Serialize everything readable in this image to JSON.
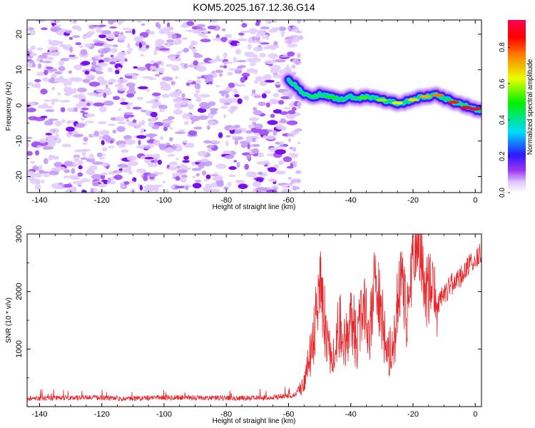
{
  "figure": {
    "title": "KOM5.2025.167.12.36.G14"
  },
  "chart_data": [
    {
      "type": "heatmap",
      "xlabel": "Height of straight line (km)",
      "ylabel": "Frequency (Hz)",
      "xlim": [
        -144,
        2
      ],
      "ylim": [
        -24.5,
        24
      ],
      "xticks": [
        -140,
        -120,
        -100,
        -80,
        -60,
        -40,
        -20,
        0
      ],
      "yticks": [
        20,
        10,
        0,
        -10,
        -20
      ],
      "grid": false,
      "noise_region": {
        "x_range": [
          -144,
          -57
        ],
        "y_range": [
          -24.5,
          24
        ],
        "typical_amplitude": 0.05
      },
      "signal_track": [
        {
          "x": -60,
          "y": 7.0
        },
        {
          "x": -57,
          "y": 5.0
        },
        {
          "x": -55,
          "y": 3.0
        },
        {
          "x": -52,
          "y": 2.5
        },
        {
          "x": -50,
          "y": 3.0
        },
        {
          "x": -47,
          "y": 2.5
        },
        {
          "x": -45,
          "y": 2.0
        },
        {
          "x": -42,
          "y": 1.5
        },
        {
          "x": -40,
          "y": 2.5
        },
        {
          "x": -37,
          "y": 2.0
        },
        {
          "x": -35,
          "y": 2.5
        },
        {
          "x": -32,
          "y": 2.0
        },
        {
          "x": -30,
          "y": 1.5
        },
        {
          "x": -27,
          "y": 1.0
        },
        {
          "x": -25,
          "y": 0.5
        },
        {
          "x": -22,
          "y": 1.0
        },
        {
          "x": -20,
          "y": 1.5
        },
        {
          "x": -17,
          "y": 2.5
        },
        {
          "x": -15,
          "y": 2.5
        },
        {
          "x": -12,
          "y": 3.0
        },
        {
          "x": -10,
          "y": 2.0
        },
        {
          "x": -7,
          "y": 1.0
        },
        {
          "x": -5,
          "y": 0.5
        },
        {
          "x": -2,
          "y": -0.5
        },
        {
          "x": 0,
          "y": -1.0
        },
        {
          "x": 2,
          "y": -1.5
        }
      ],
      "colorbar": {
        "label": "Normalized spectral amplitude",
        "range": [
          0.0,
          0.95
        ],
        "ticks": [
          "0.0",
          "0.2",
          "0.4",
          "0.6",
          "0.8"
        ],
        "colormap": "rainbow (white-purple-blue-cyan-green-yellow-red-magenta)"
      }
    },
    {
      "type": "line",
      "xlabel": "Height of straight line (km)",
      "ylabel": "SNR (10 * v/v)",
      "xlim": [
        -144,
        2
      ],
      "ylim": [
        0,
        3000
      ],
      "xticks": [
        -140,
        -120,
        -100,
        -80,
        -60,
        -40,
        -20,
        0
      ],
      "yticks": [
        3000,
        2000,
        1000
      ],
      "grid": false,
      "series": [
        {
          "color": "#e8262a",
          "x": [
            -144,
            -135,
            -125,
            -115,
            -105,
            -95,
            -85,
            -75,
            -65,
            -58,
            -55,
            -53,
            -51,
            -50,
            -48,
            -46,
            -44,
            -42,
            -40,
            -38,
            -36,
            -34,
            -32,
            -30,
            -28,
            -26,
            -24,
            -22,
            -20,
            -18,
            -16,
            -14,
            -12,
            -10,
            -8,
            -6,
            -4,
            -2,
            0,
            2
          ],
          "y": [
            140,
            150,
            160,
            140,
            150,
            160,
            150,
            150,
            160,
            200,
            400,
            900,
            1600,
            2200,
            1300,
            800,
            1500,
            1100,
            1600,
            1100,
            2000,
            1300,
            2300,
            1500,
            900,
            1200,
            2300,
            1600,
            2600,
            2900,
            1900,
            2200,
            1800,
            1950,
            2100,
            2200,
            2300,
            2450,
            2550,
            2700
          ]
        }
      ]
    }
  ]
}
